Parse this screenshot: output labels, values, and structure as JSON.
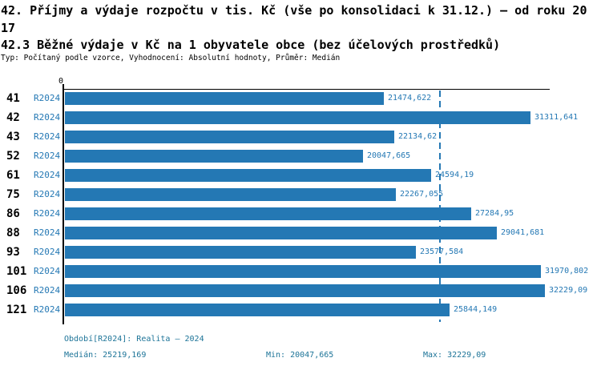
{
  "header": {
    "title_line1": "42. Příjmy a výdaje rozpočtu v tis. Kč (vše po konsolidaci k 31.12.) – od roku 2017",
    "title_line2": "42.3 Běžné výdaje v Kč na 1 obyvatele obce (bez účelových prostředků)",
    "subtitle": "Typ: Počítaný podle vzorce, Vyhodnocení: Absolutní hodnoty, Průměr: Medián"
  },
  "chart_data": {
    "type": "bar",
    "orientation": "horizontal",
    "bar_color": "#2478b4",
    "axis_origin_label": "0",
    "xlim": [
      0,
      32600
    ],
    "grid": false,
    "legend": "none",
    "categories": [
      "41",
      "42",
      "43",
      "52",
      "61",
      "75",
      "86",
      "88",
      "93",
      "101",
      "106",
      "121"
    ],
    "series_name": "R2024",
    "rows": [
      {
        "id": "41",
        "period": "R2024",
        "value": 21474.622,
        "value_label": "21474,622"
      },
      {
        "id": "42",
        "period": "R2024",
        "value": 31311.641,
        "value_label": "31311,641"
      },
      {
        "id": "43",
        "period": "R2024",
        "value": 22134.62,
        "value_label": "22134,62"
      },
      {
        "id": "52",
        "period": "R2024",
        "value": 20047.665,
        "value_label": "20047,665"
      },
      {
        "id": "61",
        "period": "R2024",
        "value": 24594.19,
        "value_label": "24594,19"
      },
      {
        "id": "75",
        "period": "R2024",
        "value": 22267.055,
        "value_label": "22267,055"
      },
      {
        "id": "86",
        "period": "R2024",
        "value": 27284.95,
        "value_label": "27284,95"
      },
      {
        "id": "88",
        "period": "R2024",
        "value": 29041.681,
        "value_label": "29041,681"
      },
      {
        "id": "93",
        "period": "R2024",
        "value": 23577.584,
        "value_label": "23577,584"
      },
      {
        "id": "101",
        "period": "R2024",
        "value": 31970.802,
        "value_label": "31970,802"
      },
      {
        "id": "106",
        "period": "R2024",
        "value": 32229.09,
        "value_label": "32229,09"
      },
      {
        "id": "121",
        "period": "R2024",
        "value": 25844.149,
        "value_label": "25844,149"
      }
    ],
    "median": {
      "value": 25219.169,
      "line_color": "#2478b4",
      "line_style": "dashed"
    }
  },
  "footer": {
    "period_line": "Období[R2024]: Realita – 2024",
    "median_label": "Medián: 25219,169",
    "min_label": "Min: 20047,665",
    "max_label": "Max: 32229,09"
  }
}
